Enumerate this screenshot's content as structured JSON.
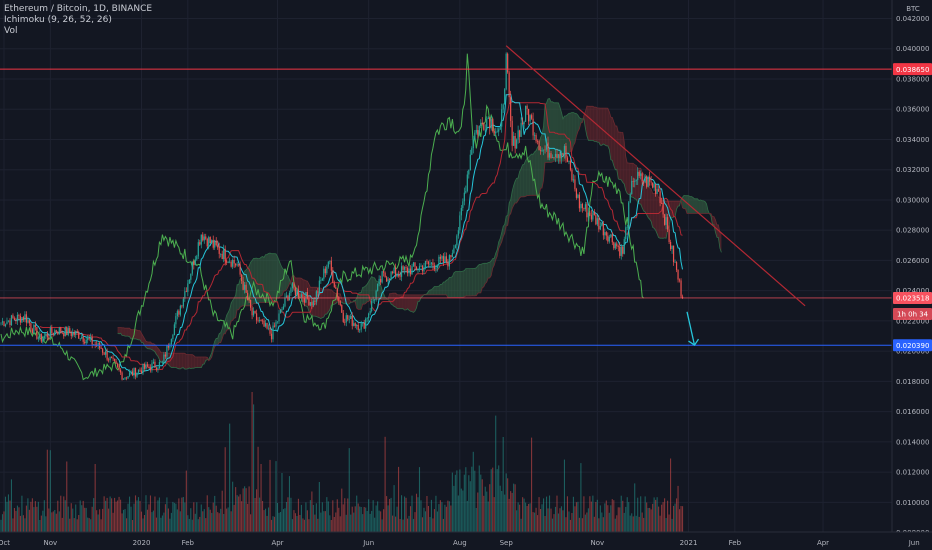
{
  "legend": {
    "title": "Ethereum / Bitcoin, 1D, BINANCE",
    "indicator_1": "Ichimoku (9, 26, 52, 26)",
    "indicator_2": "Vol"
  },
  "chart_data": {
    "type": "candlestick",
    "symbol": "Ethereum / Bitcoin, 1D, BINANCE",
    "currency_label": "BTC",
    "y_ticks": [
      0.042,
      0.04,
      0.038,
      0.036,
      0.034,
      0.032,
      0.03,
      0.028,
      0.026,
      0.024,
      0.022,
      0.02,
      0.018,
      0.016,
      0.014,
      0.012,
      0.01,
      0.008
    ],
    "y_tick_labels": [
      "0.042000",
      "0.040000",
      "0.038000",
      "0.036000",
      "0.034000",
      "0.032000",
      "0.030000",
      "0.028000",
      "0.026000",
      "0.024000",
      "0.022000",
      "0.020000",
      "0.018000",
      "0.016000",
      "0.014000",
      "0.012000",
      "0.010000",
      "0.008000"
    ],
    "x_tick_labels": [
      "Oct",
      "Nov",
      "2020",
      "Feb",
      "Apr",
      "Jun",
      "Aug",
      "Sep",
      "Nov",
      "2021",
      "Feb",
      "Apr",
      "Jun"
    ],
    "close_path": [
      [
        "2019-09-29",
        0.0219
      ],
      [
        "2019-10-15",
        0.0223
      ],
      [
        "2019-10-25",
        0.0208
      ],
      [
        "2019-11-05",
        0.0214
      ],
      [
        "2019-11-20",
        0.0211
      ],
      [
        "2019-12-05",
        0.0202
      ],
      [
        "2019-12-20",
        0.0183
      ],
      [
        "2020-01-01",
        0.0188
      ],
      [
        "2020-01-15",
        0.0192
      ],
      [
        "2020-02-01",
        0.0246
      ],
      [
        "2020-02-10",
        0.0278
      ],
      [
        "2020-02-20",
        0.0268
      ],
      [
        "2020-03-05",
        0.0257
      ],
      [
        "2020-03-15",
        0.0224
      ],
      [
        "2020-03-28",
        0.0211
      ],
      [
        "2020-04-10",
        0.0242
      ],
      [
        "2020-04-25",
        0.0232
      ],
      [
        "2020-05-05",
        0.026
      ],
      [
        "2020-05-15",
        0.0223
      ],
      [
        "2020-05-28",
        0.0216
      ],
      [
        "2020-06-10",
        0.0249
      ],
      [
        "2020-06-25",
        0.0253
      ],
      [
        "2020-07-10",
        0.0257
      ],
      [
        "2020-07-25",
        0.026
      ],
      [
        "2020-08-01",
        0.0285
      ],
      [
        "2020-08-10",
        0.0343
      ],
      [
        "2020-08-20",
        0.0355
      ],
      [
        "2020-08-28",
        0.0343
      ],
      [
        "2020-09-01",
        0.0392
      ],
      [
        "2020-09-05",
        0.0335
      ],
      [
        "2020-09-15",
        0.0359
      ],
      [
        "2020-09-25",
        0.0333
      ],
      [
        "2020-10-10",
        0.0332
      ],
      [
        "2020-10-20",
        0.0297
      ],
      [
        "2020-10-30",
        0.0288
      ],
      [
        "2020-11-10",
        0.0275
      ],
      [
        "2020-11-18",
        0.0265
      ],
      [
        "2020-11-25",
        0.0315
      ],
      [
        "2020-12-05",
        0.0312
      ],
      [
        "2020-12-12",
        0.0307
      ],
      [
        "2020-12-20",
        0.027
      ],
      [
        "2020-12-28",
        0.02351
      ]
    ],
    "price_lines": [
      {
        "label": "0.038650",
        "value": 0.03865,
        "color": "#f23645"
      },
      {
        "label": "0.020390",
        "value": 0.02039,
        "color": "#2962ff"
      },
      {
        "label": "0.023518",
        "value": 0.023518,
        "color": "#f7525f"
      }
    ],
    "countdown_label": "1h 0h 34",
    "trendline": {
      "from": [
        "2020-09-01",
        0.0402
      ],
      "to": [
        "2021-03-20",
        0.023
      ],
      "color": "#b22833"
    },
    "projection_arrow": {
      "from": [
        "2020-12-31",
        0.0226
      ],
      "to": [
        "2021-01-05",
        0.0204
      ],
      "color": "#26c6da"
    },
    "colors": {
      "up": "#26a69a",
      "down": "#ef5350",
      "conversion": "#26c6da",
      "base": "#b22833",
      "lagging": "#4caf50",
      "cloud_bull": "#3b6e4a",
      "cloud_bear": "#7d2b31"
    }
  }
}
